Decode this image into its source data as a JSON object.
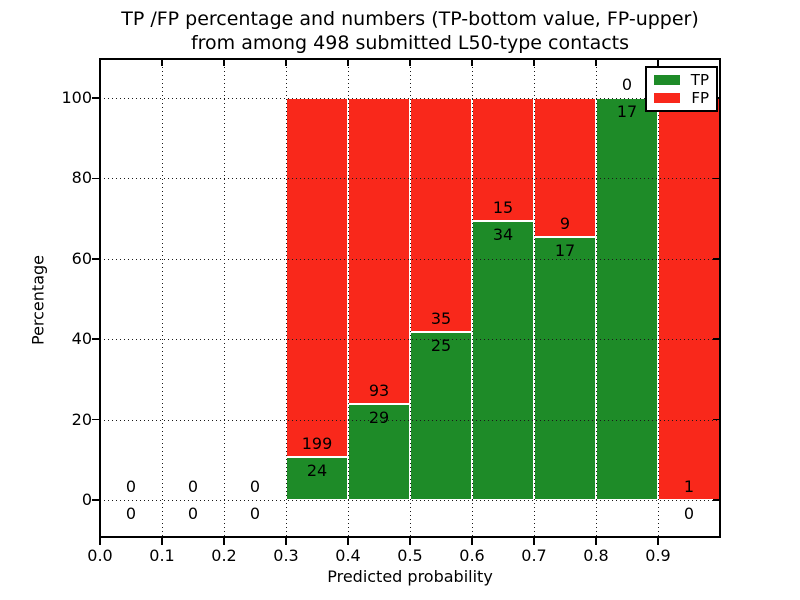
{
  "chart_data": {
    "type": "bar",
    "stacked": true,
    "title": [
      "TP /FP percentage and numbers (TP-bottom value, FP-upper)",
      "from among 498 submitted L50-type contacts"
    ],
    "xlabel": "Predicted probability",
    "ylabel": "Percentage",
    "xlim": [
      0.0,
      1.0
    ],
    "ylim": [
      -9.2,
      109.7
    ],
    "xticks": [
      0.0,
      0.1,
      0.2,
      0.3,
      0.4,
      0.5,
      0.6,
      0.7,
      0.8,
      0.9
    ],
    "xtick_labels": [
      "0.0",
      "0.1",
      "0.2",
      "0.3",
      "0.4",
      "0.5",
      "0.6",
      "0.7",
      "0.8",
      "0.9"
    ],
    "yticks": [
      0,
      20,
      40,
      60,
      80,
      100
    ],
    "grid": {
      "on": true,
      "style": "dotted",
      "color": "#1a1a1a"
    },
    "colors": {
      "tp": "#1e8b28",
      "fp": "#f9281b",
      "bar_edge": "#ffffff"
    },
    "legend": {
      "position": "upper-right",
      "entries": [
        {
          "label": "TP",
          "color": "#1e8b28"
        },
        {
          "label": "FP",
          "color": "#f9281b"
        }
      ]
    },
    "total_submitted_contacts": 498,
    "bins": [
      {
        "range": [
          0.0,
          0.1
        ],
        "tp": 0,
        "fp": 0,
        "tp_pct": null
      },
      {
        "range": [
          0.1,
          0.2
        ],
        "tp": 0,
        "fp": 0,
        "tp_pct": null
      },
      {
        "range": [
          0.2,
          0.3
        ],
        "tp": 0,
        "fp": 0,
        "tp_pct": null
      },
      {
        "range": [
          0.3,
          0.4
        ],
        "tp": 24,
        "fp": 199,
        "tp_pct": 10.76
      },
      {
        "range": [
          0.4,
          0.5
        ],
        "tp": 29,
        "fp": 93,
        "tp_pct": 23.77
      },
      {
        "range": [
          0.5,
          0.6
        ],
        "tp": 25,
        "fp": 35,
        "tp_pct": 41.67
      },
      {
        "range": [
          0.6,
          0.7
        ],
        "tp": 34,
        "fp": 15,
        "tp_pct": 69.39
      },
      {
        "range": [
          0.7,
          0.8
        ],
        "tp": 17,
        "fp": 9,
        "tp_pct": 65.38
      },
      {
        "range": [
          0.8,
          0.9
        ],
        "tp": 17,
        "fp": 0,
        "tp_pct": 100.0
      },
      {
        "range": [
          0.9,
          1.0
        ],
        "tp": 0,
        "fp": 1,
        "tp_pct": 0.0
      }
    ]
  }
}
